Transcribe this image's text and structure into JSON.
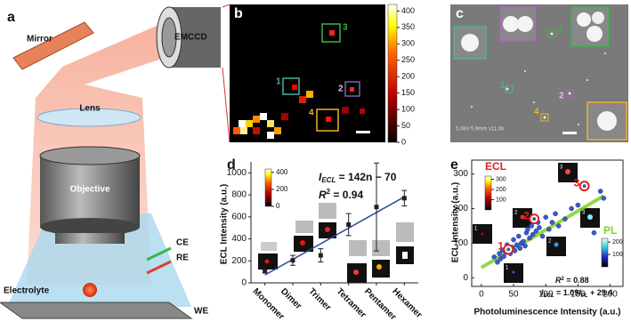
{
  "panel_a": {
    "label": "a",
    "mirror": "Mirror",
    "camera": "EMCCD",
    "lens": "Lens",
    "objective": "Objective",
    "ce": "CE",
    "re": "RE",
    "electrolyte": "Electrolyte",
    "we": "WE"
  },
  "panel_b": {
    "label": "b",
    "box_labels": [
      "1",
      "2",
      "3",
      "4"
    ],
    "colorbar": {
      "lim": [
        0,
        420
      ],
      "ticks": [
        0,
        50,
        100,
        150,
        200,
        250,
        300,
        350,
        400
      ]
    }
  },
  "panel_c": {
    "label": "c",
    "box_labels": [
      "1",
      "2",
      "3",
      "4"
    ],
    "info": "5.0kV 5.9mm x11.0k"
  },
  "chart_data": [
    {
      "type": "errorbar",
      "label": "d",
      "ylabel": "ECL Intensity (a.u.)",
      "categories": [
        "Monomer",
        "Dimer",
        "Trimer",
        "Tetramer",
        "Pentamer",
        "Hexamer"
      ],
      "values": [
        105,
        205,
        250,
        530,
        690,
        770
      ],
      "errors": [
        15,
        45,
        60,
        100,
        400,
        70
      ],
      "color": "#222222",
      "fit": {
        "slope": 142,
        "intercept": -70,
        "color": "#2a4a9a"
      },
      "ylim": [
        0,
        1100
      ],
      "yticks": [
        0,
        200,
        400,
        600,
        800,
        1000
      ],
      "equation": {
        "lhs": "I",
        "sub": "ECL",
        "rhs": " = 142n − 70"
      },
      "r2": {
        "r": "R",
        "sup": "2",
        "rhs": " = 0.94"
      },
      "colorbar": {
        "lim": [
          0,
          440
        ],
        "ticks": [
          0,
          200,
          400
        ]
      }
    },
    {
      "type": "scatter",
      "label": "e",
      "xlabel": "Photoluminescence Intensity (a.u.)",
      "ylabel": "ECL Intensity (a.u.)",
      "x": [
        20,
        25,
        28,
        30,
        33,
        35,
        38,
        40,
        45,
        48,
        50,
        52,
        55,
        58,
        60,
        62,
        65,
        68,
        70,
        72,
        75,
        78,
        80,
        85,
        88,
        90,
        95,
        100,
        105,
        110,
        115,
        120,
        130,
        140,
        150,
        175,
        185,
        190
      ],
      "y": [
        60,
        45,
        70,
        55,
        80,
        62,
        75,
        95,
        70,
        88,
        110,
        78,
        95,
        120,
        85,
        100,
        105,
        92,
        130,
        140,
        115,
        150,
        125,
        135,
        160,
        145,
        120,
        175,
        140,
        160,
        185,
        150,
        170,
        200,
        210,
        130,
        250,
        230
      ],
      "color": "#3a5bc8",
      "highlighted": {
        "labels": [
          "1",
          "2",
          "3"
        ],
        "x": [
          42,
          82,
          160
        ],
        "y": [
          82,
          170,
          265
        ],
        "color": "#e02020"
      },
      "fit": {
        "slope": 1.09,
        "intercept": 29.4,
        "color": "#7ed321"
      },
      "xlim": [
        -15,
        220
      ],
      "xticks": [
        0,
        50,
        100,
        150,
        200
      ],
      "ylim": [
        -25,
        340
      ],
      "yticks": [
        0,
        100,
        200,
        300
      ],
      "ecl_label": "ECL",
      "pl_label": "PL",
      "r2": {
        "r": "R",
        "sup": "2",
        "rhs": " = 0.88"
      },
      "equation": {
        "lhs": "I",
        "sub": "ECL",
        "rhs": " = 1.09",
        "lhs2": "I",
        "sub2": "PL",
        "rhs2": " + 29.4"
      },
      "ecl_colorbar": {
        "lim": [
          0,
          330
        ],
        "ticks": [
          100,
          200,
          300
        ]
      },
      "pl_colorbar": {
        "lim": [
          0,
          230
        ],
        "ticks": [
          100,
          200
        ]
      },
      "inset_labels": [
        "1",
        "2",
        "3",
        "1",
        "2",
        "3"
      ]
    }
  ]
}
